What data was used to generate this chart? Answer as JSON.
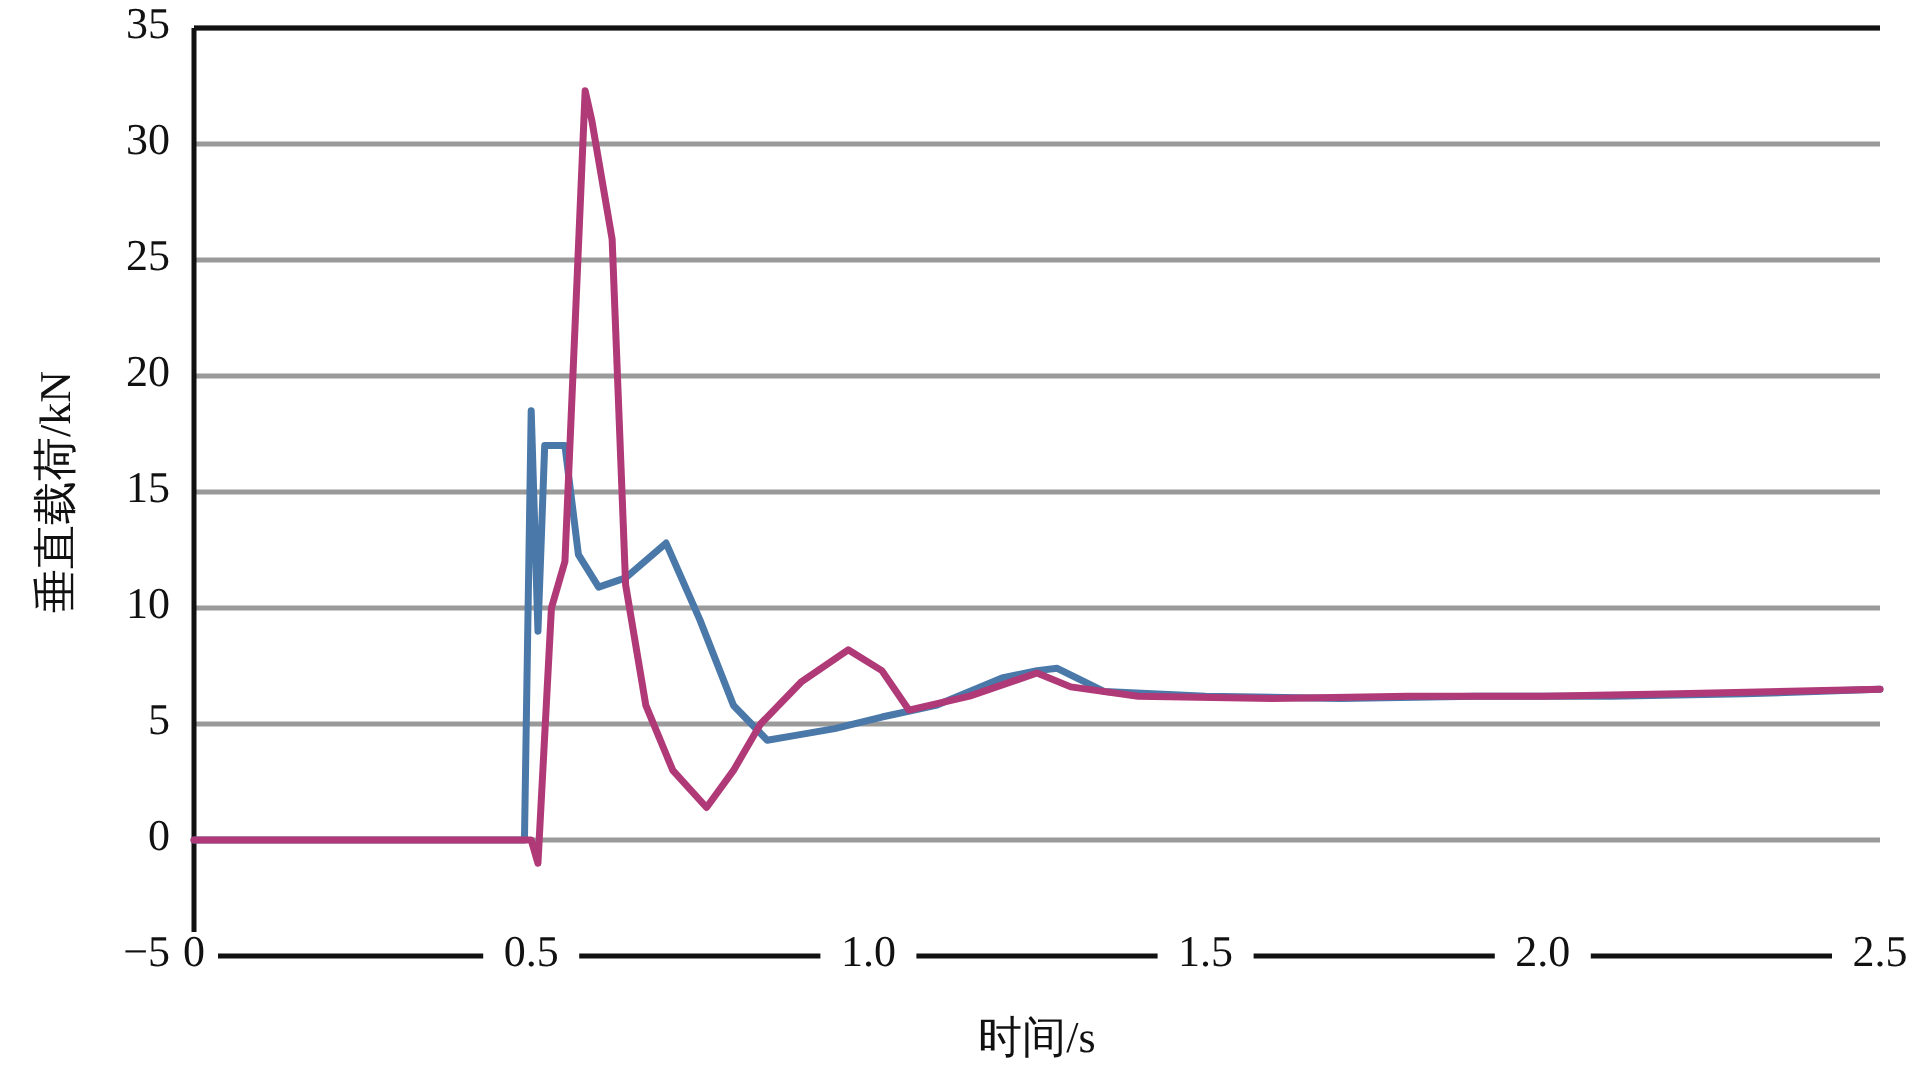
{
  "chart_data": {
    "type": "line",
    "xlabel": "时间/s",
    "ylabel": "垂直载荷/kN",
    "xlim": [
      0,
      2.5
    ],
    "ylim": [
      -5,
      35
    ],
    "xticks": [
      0,
      0.5,
      {
        "value": 1,
        "label": "1.0"
      },
      1.5,
      {
        "value": 2,
        "label": "2.0"
      },
      2.5
    ],
    "yticks": [
      {
        "value": -5,
        "label": "−5"
      },
      0,
      5,
      10,
      15,
      20,
      25,
      30,
      35
    ],
    "grid": "y",
    "line_style": "solid",
    "marker": "none",
    "series": [
      {
        "color": "#4a78a8",
        "x": [
          0,
          0.49,
          0.5,
          0.51,
          0.52,
          0.55,
          0.57,
          0.6,
          0.64,
          0.7,
          0.75,
          0.8,
          0.85,
          0.89,
          0.95,
          1.02,
          1.1,
          1.2,
          1.25,
          1.28,
          1.35,
          1.5,
          1.7,
          1.9,
          2.1,
          2.3,
          2.5
        ],
        "values": [
          0,
          0,
          18.5,
          9,
          17,
          17,
          12.3,
          10.9,
          11.3,
          12.8,
          9.5,
          5.8,
          4.3,
          4.5,
          4.8,
          5.3,
          5.8,
          7,
          7.3,
          7.4,
          6.4,
          6.2,
          6.1,
          6.2,
          6.2,
          6.3,
          6.5
        ]
      },
      {
        "color": "#b03a78",
        "x": [
          0,
          0.5,
          0.51,
          0.53,
          0.55,
          0.58,
          0.59,
          0.62,
          0.64,
          0.67,
          0.71,
          0.76,
          0.8,
          0.84,
          0.9,
          0.97,
          1.02,
          1.06,
          1.15,
          1.25,
          1.3,
          1.4,
          1.6,
          1.8,
          2.0,
          2.2,
          2.5
        ],
        "values": [
          0,
          0,
          -1,
          10,
          12,
          32.3,
          31,
          25.9,
          11,
          5.8,
          3,
          1.4,
          3,
          5,
          6.8,
          8.2,
          7.3,
          5.6,
          6.2,
          7.2,
          6.6,
          6.2,
          6.1,
          6.2,
          6.2,
          6.3,
          6.5
        ]
      }
    ]
  }
}
